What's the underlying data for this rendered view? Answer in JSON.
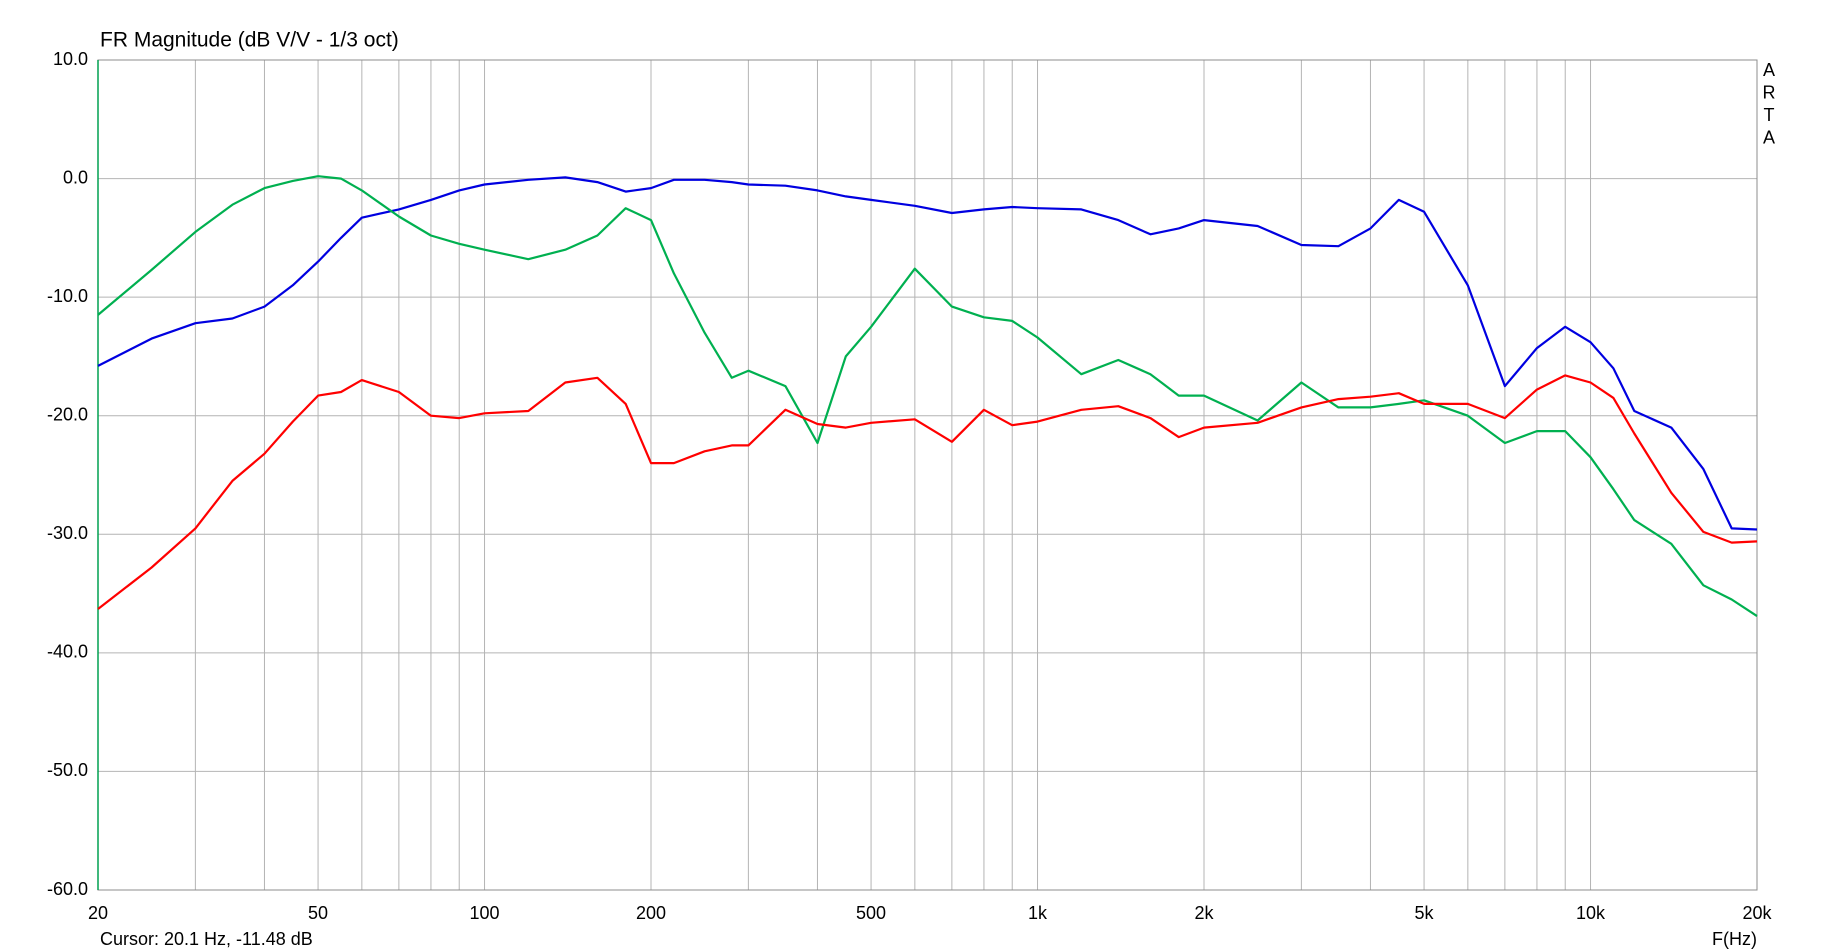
{
  "chart_data": {
    "type": "line",
    "title": "FR Magnitude (dB V/V - 1/3 oct)",
    "side_label": [
      "A",
      "R",
      "T",
      "A"
    ],
    "cursor_text": "Cursor: 20.1 Hz, -11.48 dB",
    "x_label": "F(Hz)",
    "log_x": true,
    "grid": true,
    "xlim": [
      20,
      20000
    ],
    "xticks": [
      20,
      50,
      100,
      200,
      500,
      {
        "value": 1000,
        "label": "1k"
      },
      {
        "value": 2000,
        "label": "2k"
      },
      {
        "value": 5000,
        "label": "5k"
      },
      {
        "value": 10000,
        "label": "10k"
      },
      {
        "value": 20000,
        "label": "20k"
      }
    ],
    "x_minor_gridlines": [
      30,
      40,
      60,
      70,
      80,
      90,
      300,
      400,
      600,
      700,
      800,
      900,
      3000,
      4000,
      6000,
      7000,
      8000,
      9000
    ],
    "ylim": [
      -60,
      10
    ],
    "yticks": [
      {
        "value": 10,
        "label": "10.0"
      },
      {
        "value": 0,
        "label": "0.0"
      },
      {
        "value": -10,
        "label": "-10.0"
      },
      {
        "value": -20,
        "label": "-20.0"
      },
      {
        "value": -30,
        "label": "-30.0"
      },
      {
        "value": -40,
        "label": "-40.0"
      },
      {
        "value": -50,
        "label": "-50.0"
      },
      {
        "value": -60,
        "label": "-60.0"
      }
    ],
    "x": [
      20,
      25,
      30,
      35,
      40,
      45,
      50,
      55,
      60,
      70,
      80,
      90,
      100,
      120,
      140,
      160,
      180,
      200,
      220,
      250,
      280,
      300,
      350,
      400,
      450,
      500,
      600,
      700,
      800,
      900,
      1000,
      1200,
      1400,
      1600,
      1800,
      2000,
      2500,
      3000,
      3500,
      4000,
      4500,
      5000,
      6000,
      7000,
      8000,
      9000,
      10000,
      11000,
      12000,
      14000,
      16000,
      18000,
      20000
    ],
    "series": [
      {
        "color": "#0000e0",
        "values": [
          -15.8,
          -13.5,
          -12.2,
          -11.8,
          -10.8,
          -9,
          -7,
          -5,
          -3.3,
          -2.6,
          -1.8,
          -1,
          -0.5,
          -0.1,
          0.1,
          -0.3,
          -1.1,
          -0.8,
          -0.1,
          -0.1,
          -0.3,
          -0.5,
          -0.6,
          -1,
          -1.5,
          -1.8,
          -2.3,
          -2.9,
          -2.6,
          -2.4,
          -2.5,
          -2.6,
          -3.5,
          -4.7,
          -4.2,
          -3.5,
          -4,
          -5.6,
          -5.7,
          -4.2,
          -1.8,
          -2.8,
          -9,
          -17.5,
          -14.3,
          -12.5,
          -13.8,
          -16,
          -19.6,
          -21,
          -24.5,
          -29.5,
          -29.6
        ]
      },
      {
        "color": "#00b050",
        "values": [
          -11.5,
          -7.7,
          -4.5,
          -2.2,
          -0.8,
          -0.2,
          0.2,
          0,
          -1,
          -3.2,
          -4.8,
          -5.5,
          -6,
          -6.8,
          -6,
          -4.8,
          -2.5,
          -3.5,
          -8,
          -13,
          -16.8,
          -16.2,
          -17.5,
          -22.3,
          -15,
          -12.5,
          -7.6,
          -10.8,
          -11.7,
          -12,
          -13.4,
          -16.5,
          -15.3,
          -16.5,
          -18.3,
          -18.3,
          -20.4,
          -17.2,
          -19.3,
          -19.3,
          -19,
          -18.7,
          -20,
          -22.3,
          -21.3,
          -21.3,
          -23.5,
          -26.2,
          -28.8,
          -30.8,
          -34.3,
          -35.5,
          -36.9
        ]
      },
      {
        "color": "#ff0000",
        "values": [
          -36.3,
          -32.8,
          -29.5,
          -25.5,
          -23.2,
          -20.5,
          -18.3,
          -18,
          -17,
          -18,
          -20,
          -20.2,
          -19.8,
          -19.6,
          -17.2,
          -16.8,
          -19,
          -24,
          -24,
          -23,
          -22.5,
          -22.5,
          -19.5,
          -20.7,
          -21,
          -20.6,
          -20.3,
          -22.2,
          -19.5,
          -20.8,
          -20.5,
          -19.5,
          -19.2,
          -20.2,
          -21.8,
          -21,
          -20.6,
          -19.3,
          -18.6,
          -18.4,
          -18.1,
          -19,
          -19,
          -20.2,
          -17.8,
          -16.6,
          -17.2,
          -18.5,
          -21.5,
          -26.5,
          -29.8,
          -30.7,
          -30.6
        ]
      }
    ]
  }
}
